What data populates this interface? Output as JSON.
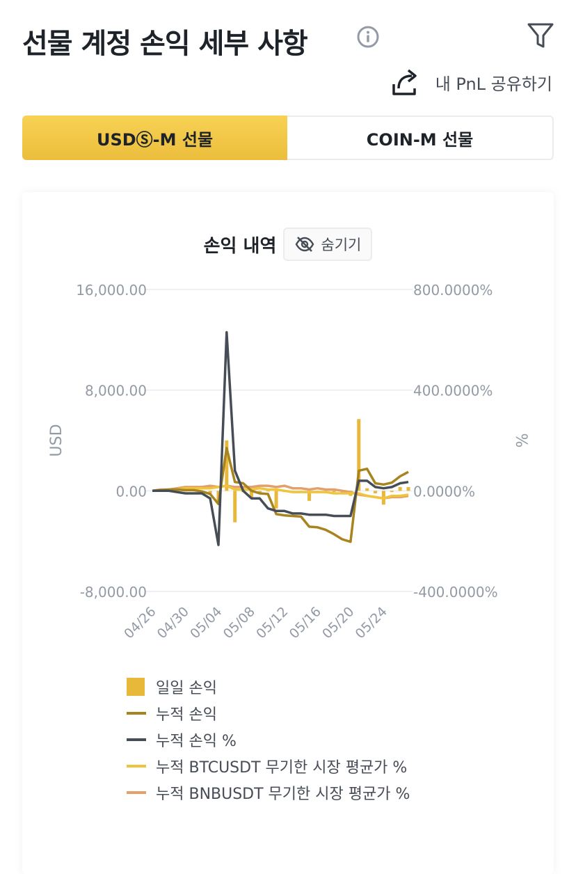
{
  "header": {
    "title": "선물 계정 손익 세부 사항",
    "info_icon": "info-circle-icon",
    "filter_icon": "filter-funnel-icon"
  },
  "share": {
    "label": "내 PnL 공유하기",
    "icon": "share-arrow-icon"
  },
  "tabs": [
    {
      "label": "USDⓈ-M 선물",
      "active": true
    },
    {
      "label": "COIN-M 선물",
      "active": false
    }
  ],
  "colors": {
    "accent": "#F0C53E",
    "daily_pnl": "#E8B83A",
    "cum_pnl": "#A8841E",
    "cum_pnl_pct": "#474D57",
    "btc_avg": "#F0C53E",
    "bnb_avg": "#E3A06B",
    "grid": "#EAECEF",
    "axis_text": "#929AA5"
  },
  "chart_header": {
    "title": "손익 내역",
    "hide_label": "숨기기",
    "hide_icon": "eye-off-icon"
  },
  "chart_data": {
    "type": "bar",
    "ylabel": "USD",
    "y2label": "%",
    "ylim": [
      -8000,
      16000
    ],
    "y2lim": [
      -400,
      800
    ],
    "yticks": [
      "16,000.00",
      "8,000.00",
      "0.00",
      "-8,000.00"
    ],
    "y2ticks": [
      "800.0000%",
      "400.0000%",
      "0.0000%",
      "-400.0000%"
    ],
    "xtick_labels": [
      "04/26",
      "04/30",
      "05/04",
      "05/08",
      "05/12",
      "05/16",
      "05/20",
      "05/24"
    ],
    "x": [
      "04/26",
      "04/27",
      "04/28",
      "04/29",
      "04/30",
      "05/01",
      "05/02",
      "05/03",
      "05/04",
      "05/05",
      "05/06",
      "05/07",
      "05/08",
      "05/09",
      "05/10",
      "05/11",
      "05/12",
      "05/13",
      "05/14",
      "05/15",
      "05/16",
      "05/17",
      "05/18",
      "05/19",
      "05/20",
      "05/21",
      "05/22",
      "05/23",
      "05/24",
      "05/25",
      "05/26",
      "05/27"
    ],
    "series": [
      {
        "name": "일일 손익",
        "type": "bar",
        "axis": "left",
        "values": [
          0,
          50,
          50,
          0,
          -50,
          0,
          -100,
          -200,
          -800,
          4000,
          -2500,
          -100,
          -600,
          -200,
          -50,
          -1400,
          -100,
          -50,
          -50,
          -800,
          -50,
          -200,
          -100,
          -200,
          -400,
          5700,
          200,
          -200,
          -1100,
          -100,
          300,
          300
        ]
      },
      {
        "name": "누적 손익",
        "type": "line",
        "axis": "left",
        "values": [
          0,
          50,
          100,
          100,
          50,
          50,
          -50,
          -250,
          -1050,
          3400,
          700,
          600,
          0,
          -200,
          -250,
          -1850,
          -1950,
          -2000,
          -2050,
          -2850,
          -2900,
          -3100,
          -3450,
          -3850,
          -4050,
          1600,
          1750,
          600,
          500,
          650,
          1150,
          1500
        ]
      },
      {
        "name": "누적 손익 %",
        "type": "line",
        "axis": "right",
        "values": [
          0,
          0,
          0,
          -5,
          -10,
          -10,
          -10,
          -30,
          -215,
          630,
          80,
          0,
          -30,
          -30,
          -70,
          -80,
          -80,
          -90,
          -90,
          -95,
          -95,
          -95,
          -100,
          -100,
          -100,
          40,
          40,
          15,
          10,
          15,
          30,
          35
        ]
      },
      {
        "name": "누적 BTCUSDT 무기한 시장 평균가 %",
        "type": "line",
        "axis": "right",
        "values": [
          0,
          0,
          0,
          5,
          10,
          10,
          10,
          10,
          15,
          20,
          5,
          5,
          5,
          10,
          5,
          5,
          0,
          -5,
          -5,
          -5,
          -5,
          -5,
          -10,
          -10,
          -10,
          -10,
          -20,
          -25,
          -30,
          -20,
          -20,
          -15
        ]
      },
      {
        "name": "누적 BNBUSDT 무기한 시장 평균가 %",
        "type": "line",
        "axis": "right",
        "values": [
          0,
          5,
          5,
          10,
          15,
          15,
          15,
          20,
          15,
          20,
          15,
          15,
          15,
          20,
          20,
          15,
          20,
          10,
          10,
          5,
          10,
          5,
          5,
          0,
          -5,
          -15,
          -20,
          -25,
          -30,
          -25,
          -25,
          -20
        ]
      }
    ]
  }
}
